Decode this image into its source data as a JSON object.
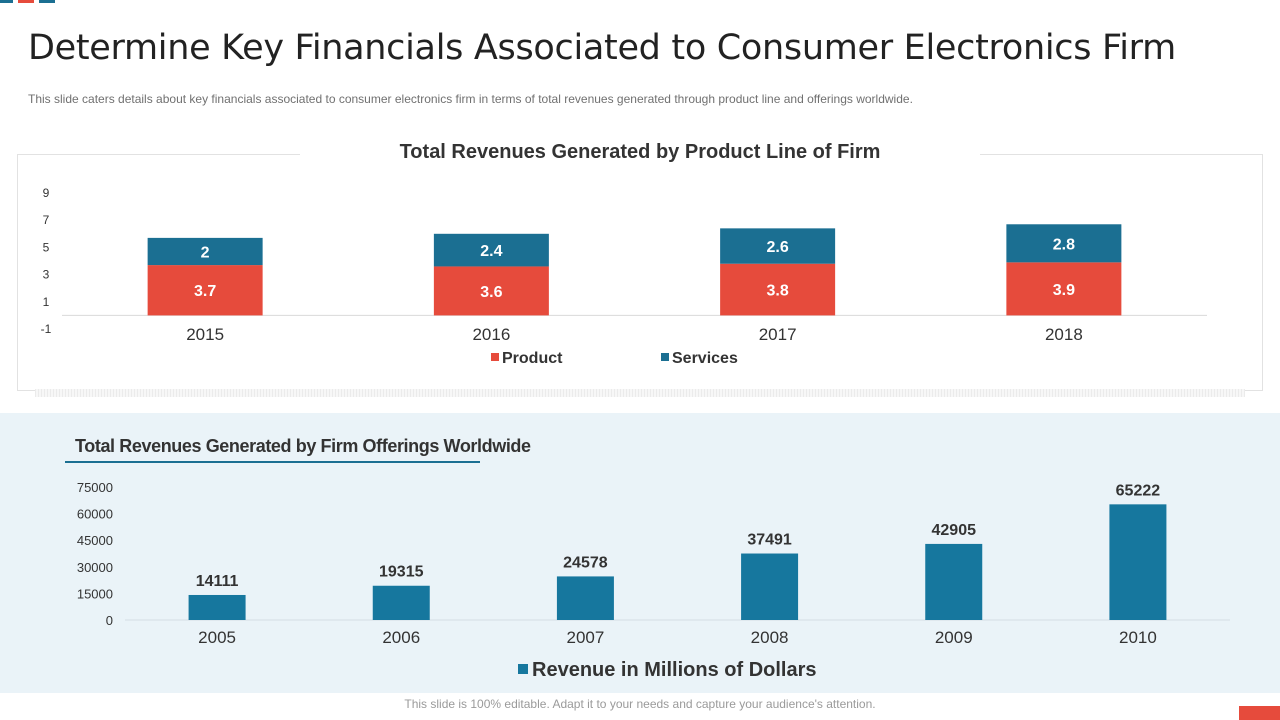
{
  "slide": {
    "title": "Determine Key Financials Associated to Consumer Electronics Firm",
    "subtitle": "This slide caters details about key financials associated to consumer electronics firm in terms of total revenues  generated through  product line and offerings  worldwide.",
    "footer": "This slide is 100% editable. Adapt it to your needs and capture your audience's attention."
  },
  "colors": {
    "product": "#e64b3c",
    "services": "#1b6f92",
    "revenue": "#16779e",
    "axis_text": "#333333"
  },
  "chart_data": [
    {
      "type": "bar",
      "stacked": true,
      "title": "Total Revenues Generated by Product Line of Firm",
      "categories": [
        "2015",
        "2016",
        "2017",
        "2018"
      ],
      "series": [
        {
          "name": "Product",
          "values": [
            3.7,
            3.6,
            3.8,
            3.9
          ]
        },
        {
          "name": "Services",
          "values": [
            2,
            2.4,
            2.6,
            2.8
          ]
        }
      ],
      "y_ticks": [
        -1,
        1,
        3,
        5,
        7,
        9
      ],
      "ylim": [
        -1,
        9
      ],
      "legend": "bottom",
      "grid": false
    },
    {
      "type": "bar",
      "title": "Total Revenues Generated by Firm Offerings Worldwide",
      "categories": [
        "2005",
        "2006",
        "2007",
        "2008",
        "2009",
        "2010"
      ],
      "series": [
        {
          "name": "Revenue in Millions of Dollars",
          "values": [
            14111,
            19315,
            24578,
            37491,
            42905,
            65222
          ]
        }
      ],
      "y_ticks": [
        0,
        15000,
        30000,
        45000,
        60000,
        75000
      ],
      "ylim": [
        0,
        75000
      ],
      "legend": "bottom",
      "grid": false
    }
  ]
}
